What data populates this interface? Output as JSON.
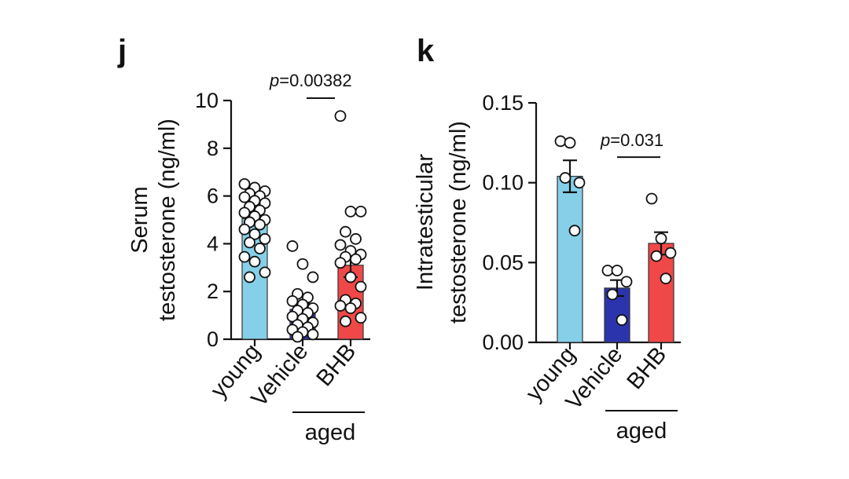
{
  "chart_data": [
    {
      "type": "bar",
      "panel_label": "j",
      "ylabel": [
        "Serum",
        "testosterone (ng/ml)"
      ],
      "ylim": [
        0,
        10
      ],
      "yticks": [
        0,
        2,
        4,
        6,
        8,
        10
      ],
      "yticks_decimals": 0,
      "categories": [
        "young",
        "Vehicle",
        "BHB"
      ],
      "group_label": "aged",
      "group_span": [
        1,
        2
      ],
      "colors": [
        "#86cfe8",
        "#2c34ad",
        "#f04848"
      ],
      "means": [
        5.05,
        1.25,
        3.1
      ],
      "sem": [
        0.25,
        0.25,
        0.5
      ],
      "points": [
        [
          6.5,
          6.35,
          6.2,
          6.1,
          6.0,
          5.95,
          5.8,
          5.7,
          5.55,
          5.4,
          5.3,
          5.15,
          5.0,
          4.9,
          4.8,
          4.6,
          4.4,
          4.2,
          4.05,
          3.8,
          3.45,
          3.25,
          2.8,
          2.6
        ],
        [
          3.9,
          3.15,
          2.6,
          1.9,
          1.75,
          1.6,
          1.45,
          1.3,
          1.2,
          1.1,
          0.95,
          0.85,
          0.7,
          0.6,
          0.5,
          0.4,
          0.3,
          0.2,
          0.1
        ],
        [
          9.35,
          5.35,
          5.35,
          4.5,
          4.2,
          3.95,
          3.7,
          3.55,
          3.45,
          3.35,
          3.2,
          2.6,
          2.2,
          1.65,
          1.5,
          1.4,
          1.3,
          0.9,
          0.75
        ]
      ],
      "comparison": {
        "from": 1,
        "to": 2,
        "p_prefix": "p",
        "p_value": "=0.00382",
        "y": 10.1
      }
    },
    {
      "type": "bar",
      "panel_label": "k",
      "ylabel": [
        "Intratesticular",
        "testosterone (ng/ml)"
      ],
      "ylim": [
        0,
        0.15
      ],
      "yticks": [
        0.0,
        0.05,
        0.1,
        0.15
      ],
      "yticks_decimals": 2,
      "categories": [
        "young",
        "Vehicle",
        "BHB"
      ],
      "group_label": "aged",
      "group_span": [
        1,
        2
      ],
      "colors": [
        "#86cfe8",
        "#2c34ad",
        "#f04848"
      ],
      "means": [
        0.104,
        0.034,
        0.062
      ],
      "sem": [
        0.01,
        0.005,
        0.007
      ],
      "points": [
        [
          0.126,
          0.125,
          0.1,
          0.103,
          0.07
        ],
        [
          0.045,
          0.045,
          0.038,
          0.03,
          0.014
        ],
        [
          0.09,
          0.065,
          0.056,
          0.054,
          0.04
        ]
      ],
      "comparison": {
        "from": 1,
        "to": 2,
        "p_prefix": "p",
        "p_value": "=0.031",
        "y": 0.116
      }
    }
  ]
}
